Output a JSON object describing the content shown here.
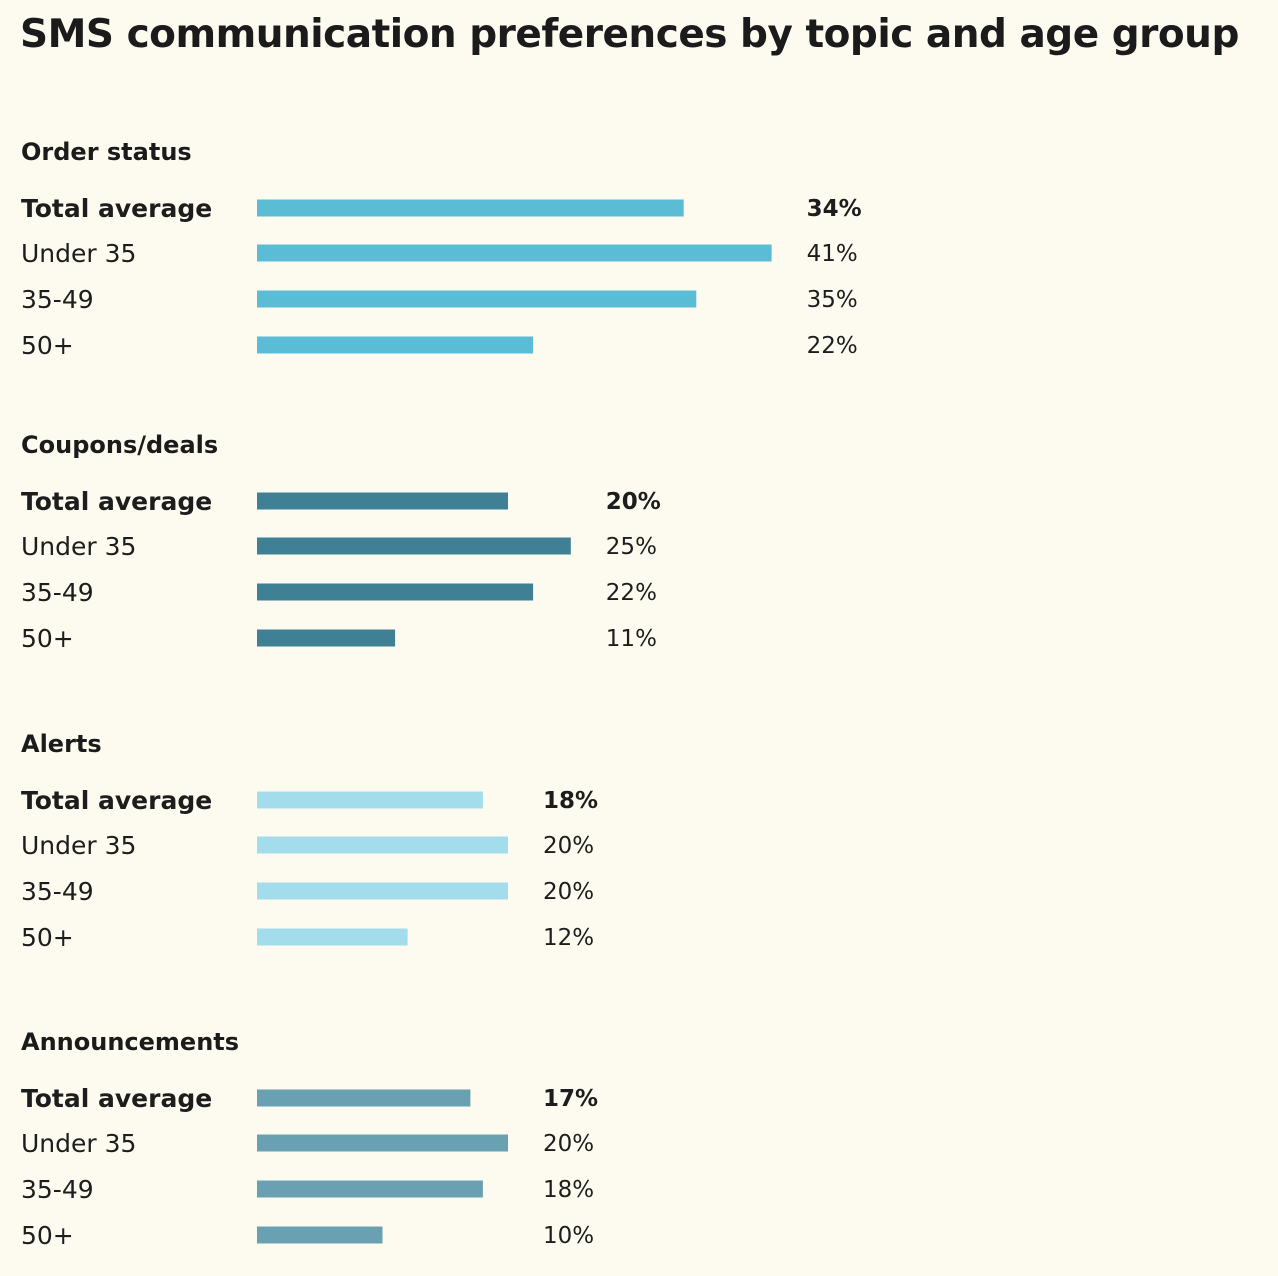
{
  "title": "SMS communication preferences by topic and age group",
  "chart_data": {
    "type": "bar",
    "orientation": "horizontal",
    "title": "SMS communication preferences by topic and age group",
    "unit": "%",
    "categories": [
      "Total average",
      "Under 35",
      "35-49",
      "50+"
    ],
    "groups": [
      {
        "name": "Order status",
        "color": "#5bbcd6",
        "values": [
          34,
          41,
          35,
          22
        ],
        "labels": [
          "34%",
          "41%",
          "35%",
          "22%"
        ]
      },
      {
        "name": "Coupons/deals",
        "color": "#3f8094",
        "values": [
          20,
          25,
          22,
          11
        ],
        "labels": [
          "20%",
          "25%",
          "22%",
          "11%"
        ]
      },
      {
        "name": "Alerts",
        "color": "#a3ddeb",
        "values": [
          18,
          20,
          20,
          12
        ],
        "labels": [
          "18%",
          "20%",
          "20%",
          "12%"
        ]
      },
      {
        "name": "Announcements",
        "color": "#69a1b2",
        "values": [
          17,
          20,
          18,
          10
        ],
        "labels": [
          "17%",
          "20%",
          "18%",
          "10%"
        ]
      }
    ]
  }
}
